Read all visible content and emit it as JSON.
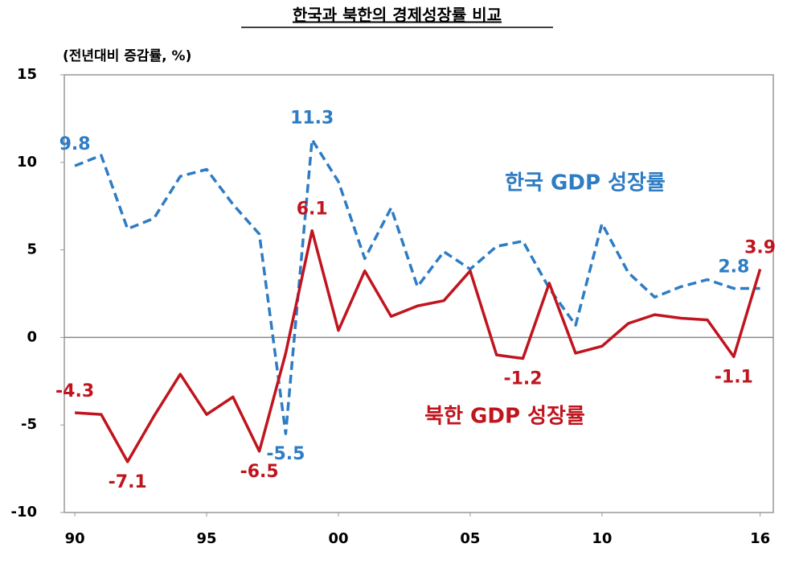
{
  "chart_data": {
    "type": "line",
    "title": "한국과 북한의 경제성장률 비교",
    "y_label": "(전년대비 증감률, %)",
    "x": [
      1990,
      1991,
      1992,
      1993,
      1994,
      1995,
      1996,
      1997,
      1998,
      1999,
      2000,
      2001,
      2002,
      2003,
      2004,
      2005,
      2006,
      2007,
      2008,
      2009,
      2010,
      2011,
      2012,
      2013,
      2014,
      2015,
      2016
    ],
    "xlim": [
      1989.6,
      2016.5
    ],
    "xticks": [
      {
        "value": 1990,
        "label": "90"
      },
      {
        "value": 1995,
        "label": "95"
      },
      {
        "value": 2000,
        "label": "00"
      },
      {
        "value": 2005,
        "label": "05"
      },
      {
        "value": 2010,
        "label": "10"
      },
      {
        "value": 2016,
        "label": "16"
      }
    ],
    "ylim": [
      -10,
      15
    ],
    "yticks": [
      -10,
      -5,
      0,
      5,
      10,
      15
    ],
    "series": [
      {
        "name": "한국 GDP 성장률",
        "color": "#2e7cc4",
        "dashed": true,
        "values": [
          9.8,
          10.4,
          6.2,
          6.8,
          9.2,
          9.6,
          7.6,
          5.9,
          -5.5,
          11.3,
          8.9,
          4.5,
          7.4,
          2.9,
          4.9,
          3.9,
          5.2,
          5.5,
          2.8,
          0.7,
          6.5,
          3.7,
          2.3,
          2.9,
          3.3,
          2.8,
          2.8
        ],
        "value_labels": [
          "9.8",
          null,
          null,
          null,
          null,
          null,
          null,
          null,
          "-5.5",
          "11.3",
          null,
          null,
          null,
          null,
          null,
          null,
          null,
          null,
          null,
          null,
          null,
          null,
          null,
          null,
          null,
          "2.8",
          null
        ]
      },
      {
        "name": "북한 GDP 성장률",
        "color": "#c0141e",
        "dashed": false,
        "values": [
          -4.3,
          -4.4,
          -7.1,
          -4.5,
          -2.1,
          -4.4,
          -3.4,
          -6.5,
          -0.9,
          6.1,
          0.4,
          3.8,
          1.2,
          1.8,
          2.1,
          3.8,
          -1.0,
          -1.2,
          3.1,
          -0.9,
          -0.5,
          0.8,
          1.3,
          1.1,
          1.0,
          -1.1,
          3.9
        ],
        "value_labels": [
          "-4.3",
          null,
          "-7.1",
          null,
          null,
          null,
          null,
          "-6.5",
          null,
          "6.1",
          null,
          null,
          null,
          null,
          null,
          null,
          null,
          "-1.2",
          null,
          null,
          null,
          null,
          null,
          null,
          null,
          "-1.1",
          "3.9"
        ]
      }
    ]
  }
}
